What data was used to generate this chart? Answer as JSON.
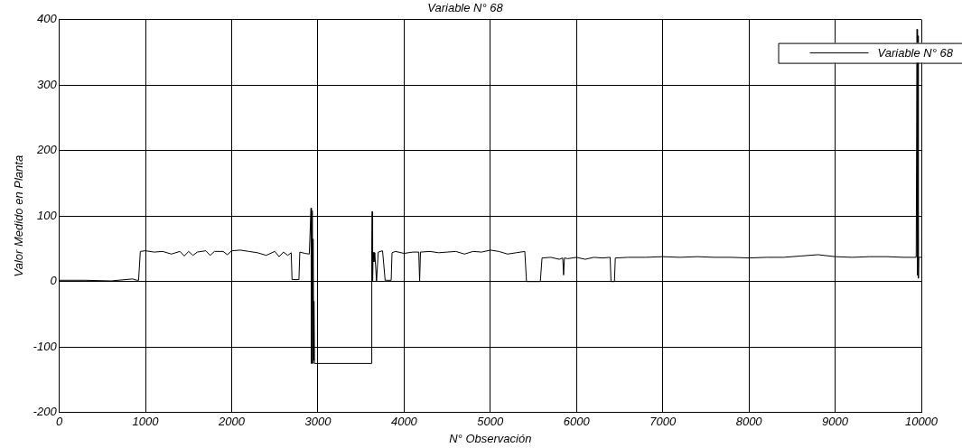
{
  "chart_data": {
    "type": "line",
    "title": "Variable N° 68",
    "xlabel": "N° Observación",
    "ylabel": "Valor Medido en Planta",
    "x": [
      0,
      300,
      600,
      850,
      900,
      920,
      940,
      1000,
      1100,
      1200,
      1300,
      1400,
      1450,
      1500,
      1550,
      1600,
      1700,
      1750,
      1800,
      1900,
      1950,
      2000,
      2100,
      2200,
      2300,
      2400,
      2500,
      2550,
      2600,
      2650,
      2690,
      2700,
      2780,
      2790,
      2850,
      2900,
      2920,
      2925,
      2930,
      2935,
      2940,
      2945,
      2950,
      2955,
      2960,
      3620,
      3625,
      3630,
      3635,
      3640,
      3650,
      3660,
      3680,
      3700,
      3750,
      3780,
      3800,
      3850,
      3860,
      3900,
      4000,
      4100,
      4170,
      4180,
      4190,
      4300,
      4400,
      4500,
      4600,
      4700,
      4800,
      4900,
      5000,
      5100,
      5200,
      5300,
      5400,
      5420,
      5580,
      5600,
      5700,
      5800,
      5840,
      5850,
      5860,
      5900,
      6000,
      6100,
      6200,
      6300,
      6390,
      6400,
      6440,
      6450,
      6600,
      6800,
      7000,
      7200,
      7400,
      7600,
      7800,
      8000,
      8200,
      8400,
      8600,
      8800,
      9000,
      9200,
      9400,
      9600,
      9800,
      9940,
      9950,
      9955,
      9960,
      9965,
      9970,
      10000
    ],
    "series": [
      {
        "name": "Variable N° 68",
        "color": "#000000",
        "values": [
          2,
          2,
          1,
          4,
          2,
          2,
          46,
          47,
          45,
          46,
          42,
          46,
          39,
          46,
          40,
          45,
          47,
          40,
          46,
          46,
          41,
          47,
          48,
          46,
          44,
          40,
          46,
          38,
          45,
          40,
          44,
          3,
          3,
          45,
          43,
          42,
          112,
          -125,
          -50,
          108,
          -125,
          65,
          -120,
          -30,
          -125,
          -125,
          60,
          107,
          0,
          45,
          30,
          44,
          0,
          45,
          47,
          2,
          2,
          2,
          44,
          46,
          43,
          45,
          45,
          0,
          45,
          46,
          44,
          45,
          46,
          42,
          46,
          45,
          48,
          46,
          42,
          44,
          46,
          0,
          0,
          36,
          37,
          34,
          36,
          10,
          36,
          35,
          37,
          34,
          37,
          36,
          37,
          0,
          0,
          36,
          37,
          37,
          38,
          37,
          38,
          37,
          37,
          36,
          37,
          37,
          39,
          41,
          38,
          37,
          38,
          38,
          37,
          37,
          385,
          10,
          375,
          5,
          37,
          37
        ]
      }
    ],
    "xlim": [
      0,
      10000
    ],
    "xticks": [
      0,
      1000,
      2000,
      3000,
      4000,
      5000,
      6000,
      7000,
      8000,
      9000,
      10000
    ],
    "ylim": [
      -200,
      400
    ],
    "yticks": [
      -200,
      -100,
      0,
      100,
      200,
      300,
      400
    ],
    "grid": true,
    "legend": "top right",
    "marker": "none",
    "line_style": "solid"
  }
}
